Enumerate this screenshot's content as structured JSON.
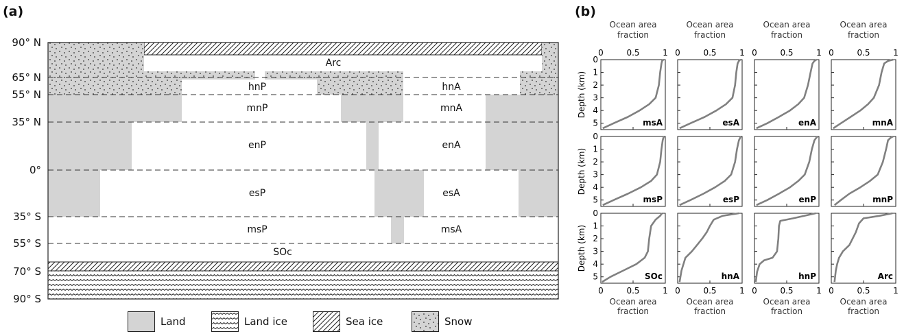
{
  "panel_a": {
    "label": "(a)",
    "latitudes": [
      "90° N",
      "65° N",
      "55° N",
      "35° N",
      "0°",
      "35° S",
      "55° S",
      "70° S",
      "90° S"
    ],
    "regions": [
      "Arc",
      "hnP",
      "hnA",
      "mnP",
      "mnA",
      "enP",
      "enA",
      "esP",
      "esA",
      "msP",
      "msA",
      "SOc"
    ],
    "legend": [
      {
        "label": "Land",
        "pattern": "land"
      },
      {
        "label": "Land ice",
        "pattern": "landice"
      },
      {
        "label": "Sea ice",
        "pattern": "seaice"
      },
      {
        "label": "Snow",
        "pattern": "snow"
      }
    ],
    "colors": {
      "land": "#d4d4d4",
      "outline": "#222222"
    }
  },
  "panel_b": {
    "label": "(b)",
    "top_axis_label": [
      "Ocean area",
      "fraction"
    ],
    "bottom_axis_label": [
      "Ocean area",
      "fraction"
    ],
    "y_axis_label": "Depth (km)",
    "x_ticks": [
      "0",
      "0.5",
      "1"
    ],
    "y_ticks": [
      "0",
      "1",
      "2",
      "3",
      "4",
      "5"
    ],
    "curve_color": "#808080"
  },
  "chart_data": {
    "type": "line",
    "xlabel": "Ocean area fraction",
    "ylabel": "Depth (km)",
    "xlim": [
      0,
      1
    ],
    "ylim": [
      5.5,
      0
    ],
    "panels": [
      {
        "name": "msA",
        "x": [
          0.03,
          0.2,
          0.42,
          0.6,
          0.75,
          0.85,
          0.9,
          0.92,
          0.94,
          0.95,
          0.97
        ],
        "y": [
          5.4,
          5.0,
          4.5,
          4.0,
          3.5,
          3.0,
          2.0,
          1.0,
          0.3,
          0.1,
          0.0
        ]
      },
      {
        "name": "esA",
        "x": [
          0.03,
          0.2,
          0.42,
          0.6,
          0.75,
          0.85,
          0.89,
          0.91,
          0.93,
          0.95,
          0.97
        ],
        "y": [
          5.4,
          5.0,
          4.5,
          4.0,
          3.5,
          3.0,
          2.0,
          1.0,
          0.3,
          0.1,
          0.0
        ]
      },
      {
        "name": "enA",
        "x": [
          0.03,
          0.2,
          0.38,
          0.55,
          0.68,
          0.77,
          0.83,
          0.87,
          0.9,
          0.93,
          0.96
        ],
        "y": [
          5.4,
          5.0,
          4.5,
          4.0,
          3.5,
          3.0,
          2.0,
          1.0,
          0.3,
          0.1,
          0.0
        ]
      },
      {
        "name": "mnA",
        "x": [
          0.03,
          0.15,
          0.3,
          0.45,
          0.57,
          0.66,
          0.74,
          0.78,
          0.82,
          0.88,
          0.96
        ],
        "y": [
          5.4,
          5.0,
          4.5,
          4.0,
          3.5,
          3.0,
          2.0,
          1.0,
          0.3,
          0.1,
          0.0
        ]
      },
      {
        "name": "msP",
        "x": [
          0.03,
          0.2,
          0.42,
          0.62,
          0.78,
          0.87,
          0.92,
          0.94,
          0.96,
          0.97,
          0.98
        ],
        "y": [
          5.4,
          5.0,
          4.5,
          4.0,
          3.5,
          3.0,
          2.0,
          1.0,
          0.3,
          0.1,
          0.0
        ]
      },
      {
        "name": "esP",
        "x": [
          0.03,
          0.2,
          0.4,
          0.58,
          0.73,
          0.83,
          0.89,
          0.92,
          0.95,
          0.97,
          0.98
        ],
        "y": [
          5.4,
          5.0,
          4.5,
          4.0,
          3.5,
          3.0,
          2.0,
          1.0,
          0.3,
          0.1,
          0.0
        ]
      },
      {
        "name": "enP",
        "x": [
          0.03,
          0.2,
          0.38,
          0.55,
          0.68,
          0.78,
          0.85,
          0.89,
          0.93,
          0.96,
          0.98
        ],
        "y": [
          5.4,
          5.0,
          4.5,
          4.0,
          3.5,
          3.0,
          2.0,
          1.0,
          0.3,
          0.1,
          0.0
        ]
      },
      {
        "name": "mnP",
        "x": [
          0.05,
          0.15,
          0.28,
          0.45,
          0.6,
          0.72,
          0.8,
          0.85,
          0.88,
          0.92,
          0.96
        ],
        "y": [
          5.4,
          5.0,
          4.5,
          4.0,
          3.5,
          3.0,
          2.0,
          1.0,
          0.3,
          0.1,
          0.0
        ]
      },
      {
        "name": "SOc",
        "x": [
          0.02,
          0.15,
          0.35,
          0.55,
          0.68,
          0.73,
          0.75,
          0.78,
          0.85,
          0.92,
          0.95
        ],
        "y": [
          5.4,
          5.0,
          4.5,
          4.0,
          3.5,
          3.0,
          2.0,
          1.0,
          0.5,
          0.2,
          0.0
        ]
      },
      {
        "name": "hnA",
        "x": [
          0.03,
          0.06,
          0.12,
          0.22,
          0.3,
          0.38,
          0.45,
          0.5,
          0.56,
          0.7,
          0.95
        ],
        "y": [
          5.4,
          4.5,
          3.5,
          3.0,
          2.5,
          2.0,
          1.5,
          1.0,
          0.5,
          0.2,
          0.0
        ]
      },
      {
        "name": "hnP",
        "x": [
          0.02,
          0.04,
          0.08,
          0.15,
          0.28,
          0.35,
          0.37,
          0.38,
          0.4,
          0.6,
          0.95
        ],
        "y": [
          5.4,
          4.6,
          4.0,
          3.7,
          3.5,
          3.0,
          2.0,
          1.0,
          0.6,
          0.4,
          0.0
        ]
      },
      {
        "name": "Arc",
        "x": [
          0.05,
          0.07,
          0.09,
          0.12,
          0.18,
          0.28,
          0.38,
          0.43,
          0.5,
          0.75,
          0.95
        ],
        "y": [
          5.4,
          4.5,
          4.0,
          3.5,
          3.0,
          2.5,
          1.5,
          0.8,
          0.4,
          0.2,
          0.0
        ]
      }
    ]
  }
}
